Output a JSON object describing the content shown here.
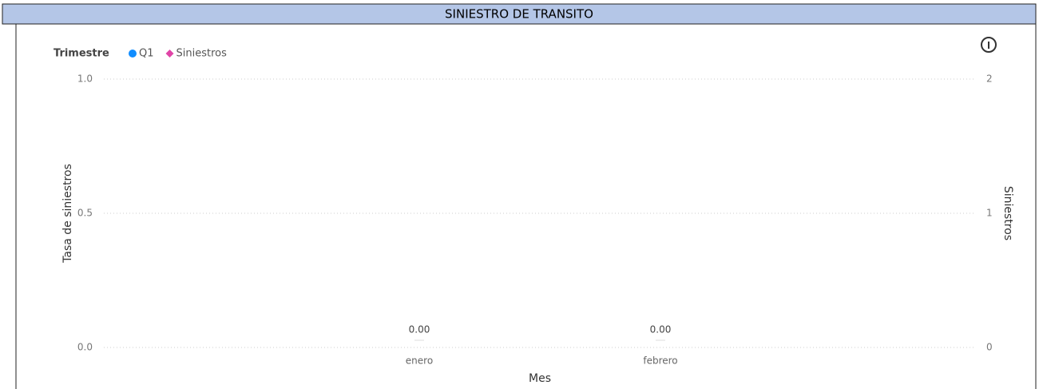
{
  "header": {
    "title": "SINIESTRO DE TRANSITO"
  },
  "chart_data": {
    "type": "bar",
    "categories": [
      "enero",
      "febrero"
    ],
    "legend_title": "Trimestre",
    "series": [
      {
        "name": "Q1",
        "color": "#118dff",
        "values": [
          0,
          0
        ],
        "value_labels": [
          "0.00",
          "0.00"
        ]
      },
      {
        "name": "Siniestros",
        "color": "#e044a7",
        "values": [
          null,
          null
        ],
        "axis": "y2"
      }
    ],
    "xlabel": "Mes",
    "ylabel": "Tasa de siniestros",
    "y2label": "Siniestros",
    "ylim": [
      0,
      1
    ],
    "yticks": [
      {
        "value": 0,
        "label": "0.0"
      },
      {
        "value": 0.5,
        "label": "0.5"
      },
      {
        "value": 1,
        "label": "1.0"
      }
    ],
    "y2lim": [
      0,
      2
    ],
    "y2ticks": [
      0,
      1,
      2
    ],
    "grid": true
  }
}
